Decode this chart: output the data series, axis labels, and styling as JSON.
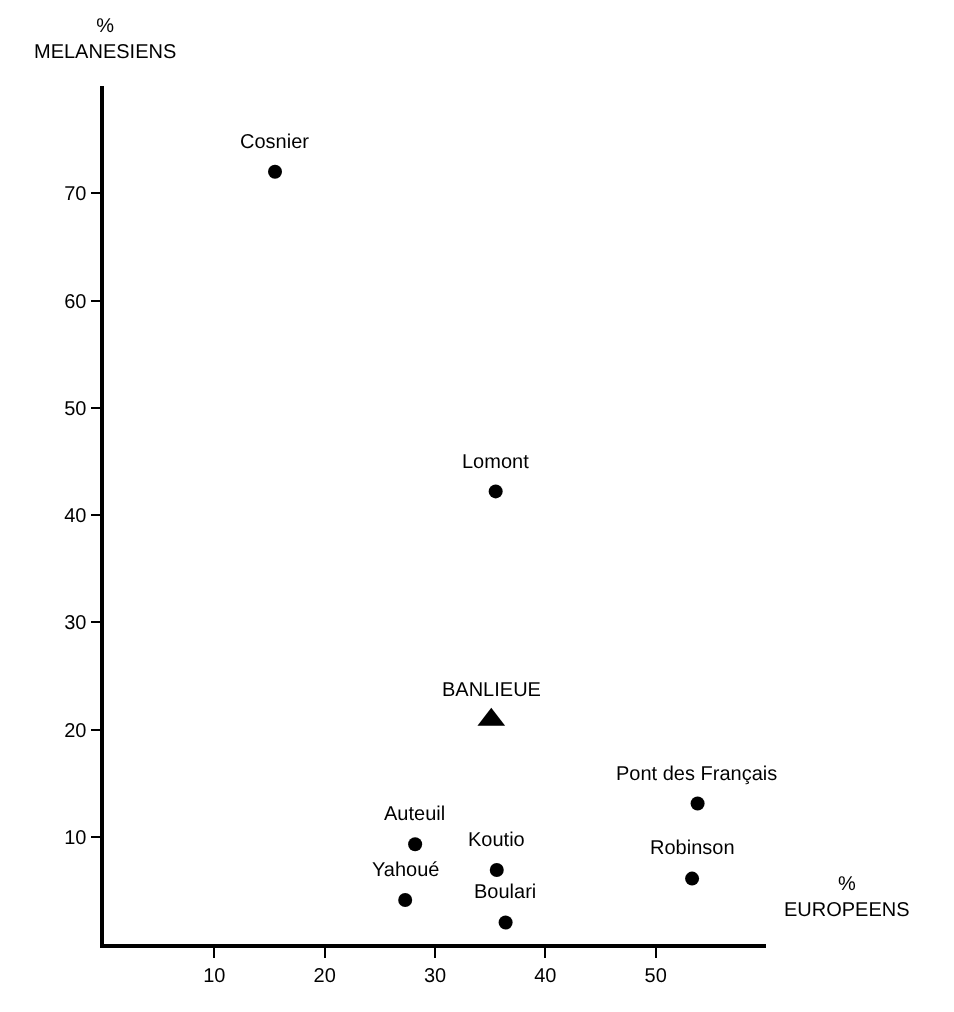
{
  "chart_data": {
    "type": "scatter",
    "xlabel": "%\nEUROPEENS",
    "ylabel": "%\nMELANESIENS",
    "xlim": [
      0,
      60
    ],
    "ylim": [
      0,
      80
    ],
    "xticks": [
      10,
      20,
      30,
      40,
      50
    ],
    "yticks": [
      10,
      20,
      30,
      40,
      50,
      60,
      70
    ],
    "series": [
      {
        "color": "#000000",
        "marker": "circle",
        "x": [
          15.5,
          35.5,
          53.8,
          53.3,
          35.6,
          36.4,
          28.2,
          27.3
        ],
        "values": [
          72,
          42.2,
          13.1,
          6.1,
          6.9,
          2.0,
          9.3,
          4.1
        ]
      },
      {
        "color": "#000000",
        "marker": "triangle",
        "x": [
          35.1
        ],
        "values": [
          20.9
        ]
      }
    ],
    "annotations": [
      {
        "text": "Cosnier",
        "x": 15.5,
        "y": 72
      },
      {
        "text": "Lomont",
        "x": 35.5,
        "y": 42.2
      },
      {
        "text": "BANLIEUE",
        "x": 35.1,
        "y": 20.9
      },
      {
        "text": "Pont des Français",
        "x": 53.8,
        "y": 13.1
      },
      {
        "text": "Robinson",
        "x": 53.3,
        "y": 6.1
      },
      {
        "text": "Koutio",
        "x": 35.6,
        "y": 6.9
      },
      {
        "text": "Boulari",
        "x": 36.4,
        "y": 2.0
      },
      {
        "text": "Auteuil",
        "x": 28.2,
        "y": 9.3
      },
      {
        "text": "Yahoué",
        "x": 27.3,
        "y": 4.1
      }
    ]
  }
}
